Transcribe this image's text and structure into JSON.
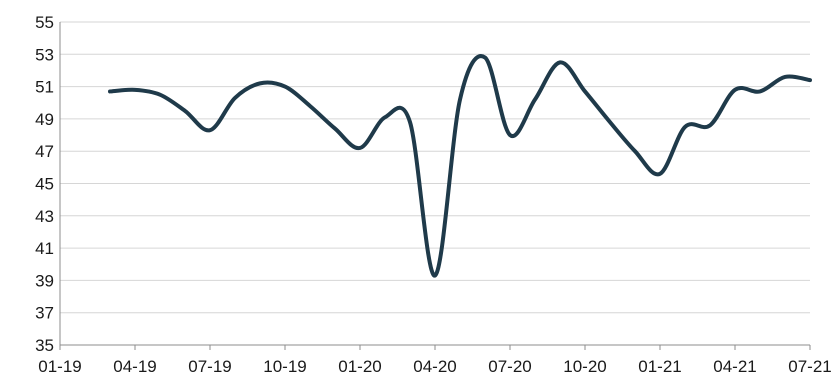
{
  "chart_data": {
    "type": "line",
    "title": "",
    "xlabel": "",
    "ylabel": "",
    "ylim": [
      35,
      55
    ],
    "yticks": [
      35,
      37,
      39,
      41,
      43,
      45,
      47,
      49,
      51,
      53,
      55
    ],
    "xticks": [
      "01-19",
      "04-19",
      "07-19",
      "10-19",
      "01-20",
      "04-20",
      "07-20",
      "10-20",
      "01-21",
      "04-21",
      "07-21"
    ],
    "grid": true,
    "legend": "none",
    "line_color": "#1f3a4a",
    "series": [
      {
        "x": [
          "03-19",
          "04-19",
          "05-19",
          "06-19",
          "07-19",
          "08-19",
          "09-19",
          "10-19",
          "11-19",
          "12-19",
          "01-20",
          "02-20",
          "03-20",
          "04-20",
          "05-20",
          "06-20",
          "07-20",
          "08-20",
          "09-20",
          "10-20",
          "11-20",
          "12-20",
          "01-21",
          "02-21",
          "03-21",
          "04-21",
          "05-21",
          "06-21",
          "07-21"
        ],
        "values": [
          50.7,
          50.8,
          50.5,
          49.5,
          48.3,
          50.3,
          51.2,
          51.0,
          49.8,
          48.4,
          47.2,
          49.1,
          48.8,
          39.3,
          50.2,
          52.8,
          48.0,
          50.2,
          52.5,
          50.7,
          48.8,
          47.0,
          45.6,
          48.5,
          48.6,
          50.8,
          50.7,
          51.6,
          51.4
        ]
      }
    ]
  }
}
